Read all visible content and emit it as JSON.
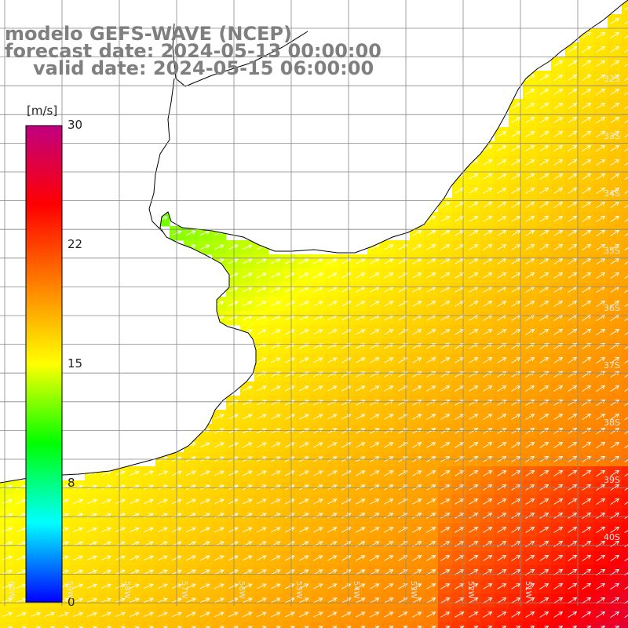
{
  "titles": {
    "line1": "modelo GEFS-WAVE (NCEP)",
    "line2": "forecast date: 2024-05-13 00:00:00",
    "line3": "valid date: 2024-05-15 06:00:00"
  },
  "colorbar": {
    "unit": "[m/s]",
    "ticks": [
      "30",
      "22",
      "15",
      "8",
      "0"
    ],
    "min": 0,
    "max": 30,
    "colors": [
      "#0000ff",
      "#00ffff",
      "#00ff00",
      "#ffff00",
      "#ff8000",
      "#ff0000",
      "#c00080"
    ]
  },
  "map": {
    "lat_labels": [
      "32S",
      "33S",
      "34S",
      "35S",
      "36S",
      "37S",
      "38S",
      "39S",
      "40S"
    ],
    "lon_labels": [
      "60W",
      "59W",
      "58W",
      "57W",
      "56W",
      "55W",
      "54W",
      "53W",
      "52W",
      "51W"
    ],
    "field": "wind speed (m/s) with direction arrows",
    "land_color": "#ffffff",
    "grid_color": "#888888",
    "arrow_color": "#ffffff"
  }
}
